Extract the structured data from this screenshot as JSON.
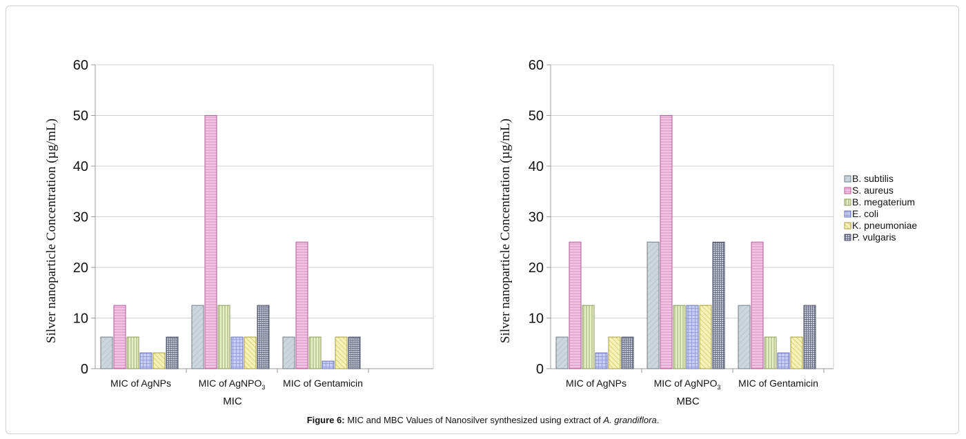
{
  "figure": {
    "caption_label": "Figure 6:",
    "caption_text_main": " MIC and MBC Values of Nanosilver synthesized using extract of ",
    "caption_species": "A. grandiflora",
    "caption_end": "."
  },
  "colors": {
    "B. subtilis": "#ccd6dc",
    "S. aureus": "#f3c3e6",
    "B. megaterium": "#e7efc9",
    "E. coli": "#c6ccf3",
    "K. pneumoniae": "#f6f1b8",
    "P. vulgaris": "#c8cbdc",
    "grid": "#d0d0d0",
    "axis": "#9a9a9a"
  },
  "legend": [
    "B. subtilis",
    "S. aureus",
    "B. megaterium",
    "E. coli",
    "K. pneumoniae",
    "P. vulgaris"
  ],
  "chart_data": [
    {
      "type": "bar",
      "title": "",
      "xlabel": "MIC",
      "ylabel": "Silver nanoparticle Concentration (µg/mL)",
      "ylim": [
        0,
        60
      ],
      "yticks": [
        0,
        10,
        20,
        30,
        40,
        50,
        60
      ],
      "grid": true,
      "legend_position": "right",
      "categories": [
        "MIC of AgNPs",
        "MIC of AgNPO",
        "MIC of Gentamicin"
      ],
      "category_subscripts": [
        "",
        "3",
        ""
      ],
      "series": [
        {
          "name": "B. subtilis",
          "values": [
            6.25,
            12.5,
            6.25
          ]
        },
        {
          "name": "S. aureus",
          "values": [
            12.5,
            50,
            25
          ]
        },
        {
          "name": "B. megaterium",
          "values": [
            6.25,
            12.5,
            6.25
          ]
        },
        {
          "name": "E. coli",
          "values": [
            3.125,
            6.25,
            1.5
          ]
        },
        {
          "name": "K. pneumoniae",
          "values": [
            3.125,
            6.25,
            6.25
          ]
        },
        {
          "name": "P. vulgaris",
          "values": [
            6.25,
            12.5,
            6.25
          ]
        }
      ]
    },
    {
      "type": "bar",
      "title": "",
      "xlabel": "MBC",
      "ylabel": "Silver nanoparticle Concentration (µg/mL)",
      "ylim": [
        0,
        60
      ],
      "yticks": [
        0,
        10,
        20,
        30,
        40,
        50,
        60
      ],
      "grid": true,
      "legend_position": "right",
      "categories": [
        "MIC of AgNPs",
        "MIC of AgNPO",
        "MIC of Gentamicin"
      ],
      "category_subscripts": [
        "",
        "3",
        ""
      ],
      "series": [
        {
          "name": "B. subtilis",
          "values": [
            6.25,
            25,
            12.5
          ]
        },
        {
          "name": "S. aureus",
          "values": [
            25,
            50,
            25
          ]
        },
        {
          "name": "B. megaterium",
          "values": [
            12.5,
            12.5,
            6.25
          ]
        },
        {
          "name": "E. coli",
          "values": [
            3.125,
            12.5,
            3.125
          ]
        },
        {
          "name": "K. pneumoniae",
          "values": [
            6.25,
            12.5,
            6.25
          ]
        },
        {
          "name": "P. vulgaris",
          "values": [
            6.25,
            25,
            12.5
          ]
        }
      ]
    }
  ]
}
